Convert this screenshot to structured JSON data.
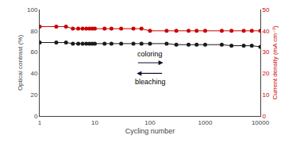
{
  "chart_data": {
    "type": "line",
    "xlabel": "Cycling number",
    "ylabel": "Optical contrast (%)",
    "y2label": "Current density (mA cm⁻²)",
    "log": "x",
    "grid": false,
    "xlim": [
      1,
      10000
    ],
    "xticks": [
      1,
      10,
      100,
      1000,
      10000
    ],
    "ylim": [
      0,
      100
    ],
    "yticks": [
      0,
      20,
      40,
      60,
      80,
      100
    ],
    "y2lim": [
      0,
      50
    ],
    "y2ticks": [
      0,
      10,
      20,
      30,
      40,
      50
    ],
    "x": [
      1,
      2,
      3,
      4,
      5,
      6,
      7,
      8,
      9,
      10,
      15,
      20,
      30,
      50,
      70,
      100,
      200,
      300,
      500,
      700,
      1000,
      2000,
      3000,
      5000,
      7000,
      10000
    ],
    "series": [
      {
        "color": "#1a1a1a",
        "marker": "circle",
        "line_style": "solid",
        "values": [
          69,
          69,
          69,
          68,
          68,
          68,
          68,
          68,
          68,
          68,
          68,
          68,
          68,
          68,
          68,
          68,
          68,
          67,
          67,
          67,
          67,
          67,
          66,
          66,
          66,
          65
        ]
      },
      {
        "color": "#cc0000",
        "marker": "circle",
        "line_style": "solid",
        "axis": "y2",
        "values": [
          42,
          42,
          42,
          41,
          41,
          41,
          41,
          41,
          41,
          41,
          41,
          41,
          41,
          41,
          41,
          40,
          40,
          40,
          40,
          40,
          40,
          40,
          40,
          40,
          40,
          40
        ]
      }
    ],
    "annotations": [
      "coloring",
      "bleaching"
    ]
  }
}
